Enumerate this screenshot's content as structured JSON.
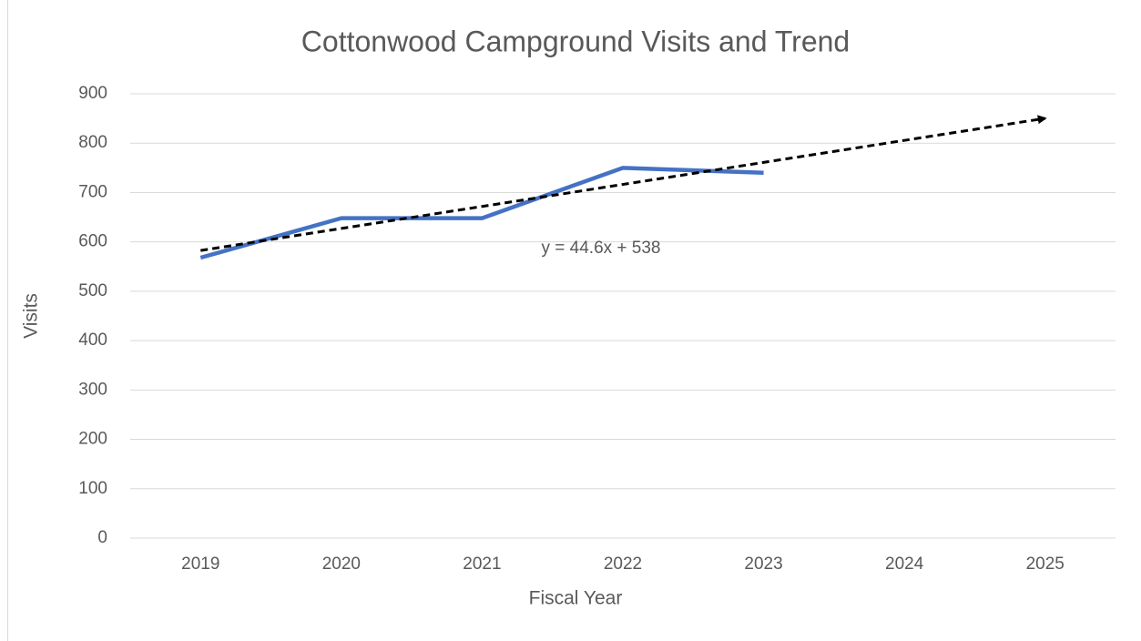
{
  "chart_data": {
    "type": "line",
    "title": "Cottonwood Campground Visits and Trend",
    "x_label": "Fiscal Year",
    "y_label": "Visits",
    "categories": [
      "2019",
      "2020",
      "2021",
      "2022",
      "2023",
      "2024",
      "2025"
    ],
    "series": [
      {
        "color": "#4472c4",
        "values": [
          568,
          648,
          648,
          750,
          740,
          null,
          null
        ]
      }
    ],
    "trendline": {
      "label": "y = 44.6x + 538",
      "color": "#000000",
      "values": [
        582.6,
        627.2,
        671.8,
        716.4,
        761,
        805.6,
        850.2
      ]
    },
    "ylim": [
      0,
      900
    ],
    "yticks": [
      0,
      100,
      200,
      300,
      400,
      500,
      600,
      700,
      800,
      900
    ],
    "grid": true
  }
}
